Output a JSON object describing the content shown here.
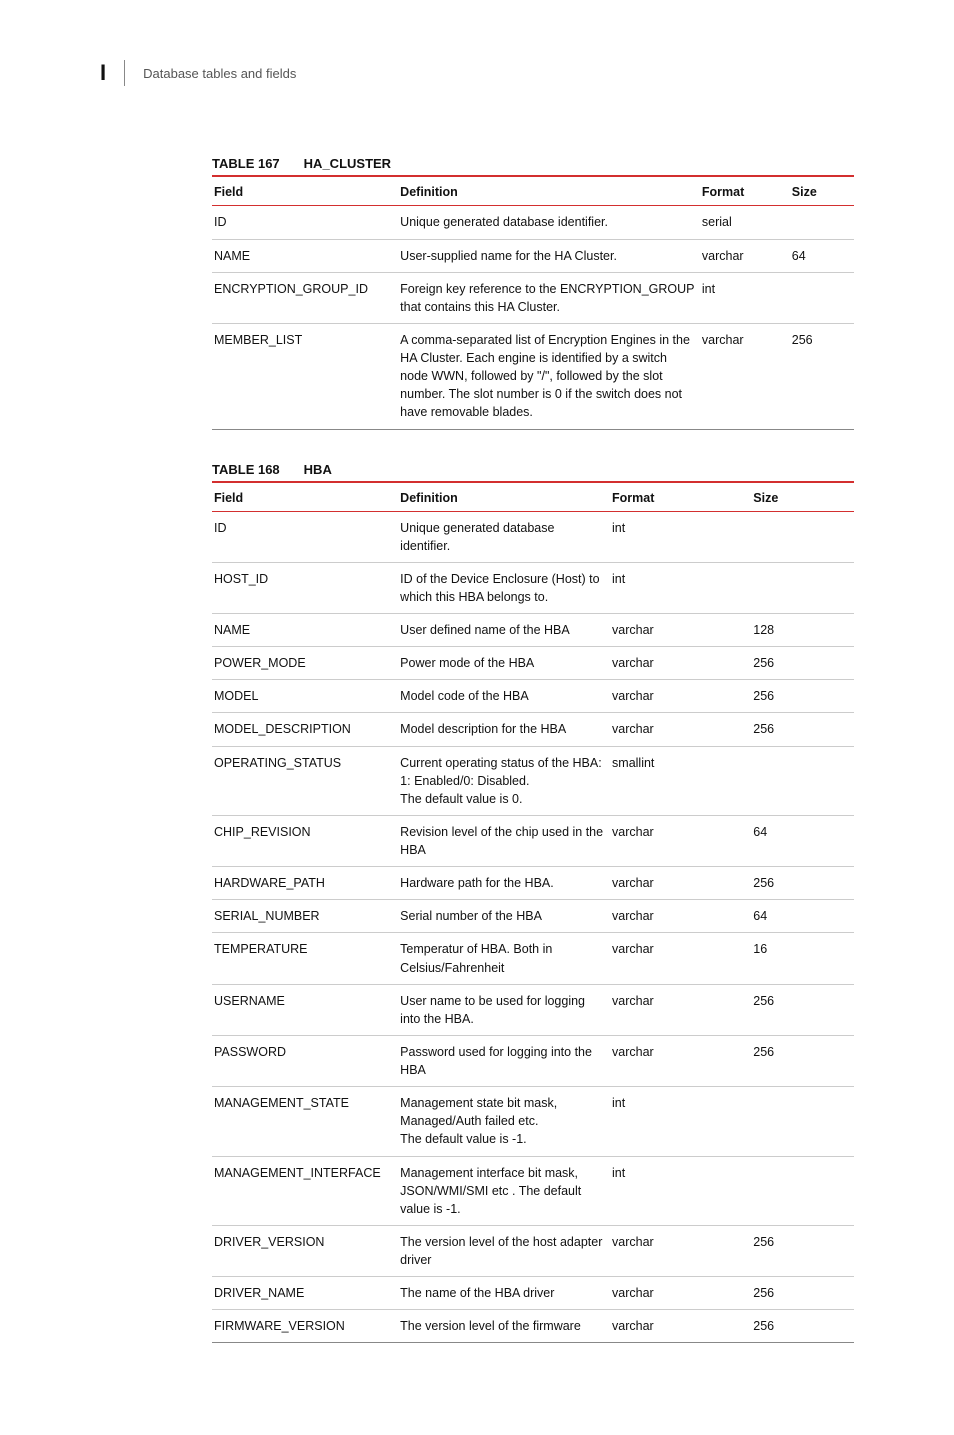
{
  "header": {
    "appendix_letter": "I",
    "section_title": "Database tables and fields"
  },
  "tables": [
    {
      "number": "TABLE 167",
      "name": "HA_CLUSTER",
      "columns": [
        "Field",
        "Definition",
        "Format",
        "Size"
      ],
      "rows": [
        {
          "field": "ID",
          "definition": "Unique generated database identifier.",
          "format": "serial",
          "size": ""
        },
        {
          "field": "NAME",
          "definition": "User-supplied name for the HA Cluster.",
          "format": "varchar",
          "size": "64"
        },
        {
          "field": "ENCRYPTION_GROUP_ID",
          "definition": "Foreign key reference to the ENCRYPTION_GROUP that contains this HA Cluster.",
          "format": "int",
          "size": ""
        },
        {
          "field": "MEMBER_LIST",
          "definition": "A comma-separated list of Encryption Engines in the HA Cluster.  Each engine is identified by a switch node WWN, followed by \"/\", followed by the slot number. The slot number is 0 if the switch does not have removable blades.",
          "format": "varchar",
          "size": "256"
        }
      ]
    },
    {
      "number": "TABLE 168",
      "name": "HBA",
      "columns": [
        "Field",
        "Definition",
        "Format",
        "Size"
      ],
      "rows": [
        {
          "field": "ID",
          "definition": "Unique generated database identifier.",
          "format": "int",
          "size": ""
        },
        {
          "field": "HOST_ID",
          "definition": "ID of the Device Enclosure (Host) to which this HBA belongs to.",
          "format": "int",
          "size": ""
        },
        {
          "field": "NAME",
          "definition": "User defined name of the HBA",
          "format": "varchar",
          "size": "128"
        },
        {
          "field": "POWER_MODE",
          "definition": "Power mode of the HBA",
          "format": "varchar",
          "size": "256"
        },
        {
          "field": "MODEL",
          "definition": "Model code of the HBA",
          "format": "varchar",
          "size": "256"
        },
        {
          "field": "MODEL_DESCRIPTION",
          "definition": "Model description for the HBA",
          "format": "varchar",
          "size": "256"
        },
        {
          "field": "OPERATING_STATUS",
          "definition": "Current operating status of the HBA:\n1: Enabled/0: Disabled.\nThe default value is 0.",
          "format": "smallint",
          "size": ""
        },
        {
          "field": "CHIP_REVISION",
          "definition": "Revision level of the chip used in the HBA",
          "format": "varchar",
          "size": "64"
        },
        {
          "field": "HARDWARE_PATH",
          "definition": "Hardware path for the HBA.",
          "format": "varchar",
          "size": "256"
        },
        {
          "field": "SERIAL_NUMBER",
          "definition": "Serial number of the HBA",
          "format": "varchar",
          "size": "64"
        },
        {
          "field": "TEMPERATURE",
          "definition": "Temperatur of HBA. Both in Celsius/Fahrenheit",
          "format": "varchar",
          "size": "16"
        },
        {
          "field": "USERNAME",
          "definition": "User name to be used for logging into the HBA.",
          "format": "varchar",
          "size": "256"
        },
        {
          "field": "PASSWORD",
          "definition": "Password used for logging into the HBA",
          "format": "varchar",
          "size": "256"
        },
        {
          "field": "MANAGEMENT_STATE",
          "definition": "Management state bit mask, Managed/Auth failed etc.\nThe default value is -1.",
          "format": "int",
          "size": ""
        },
        {
          "field": "MANAGEMENT_INTERFACE",
          "definition": "Management interface bit mask, JSON/WMI/SMI etc . The default value is -1.",
          "format": "int",
          "size": ""
        },
        {
          "field": "DRIVER_VERSION",
          "definition": "The version level of the host adapter driver",
          "format": "varchar",
          "size": "256"
        },
        {
          "field": "DRIVER_NAME",
          "definition": "The name of the HBA driver",
          "format": "varchar",
          "size": "256"
        },
        {
          "field": "FIRMWARE_VERSION",
          "definition": "The version level of the firmware",
          "format": "varchar",
          "size": "256"
        }
      ]
    }
  ]
}
